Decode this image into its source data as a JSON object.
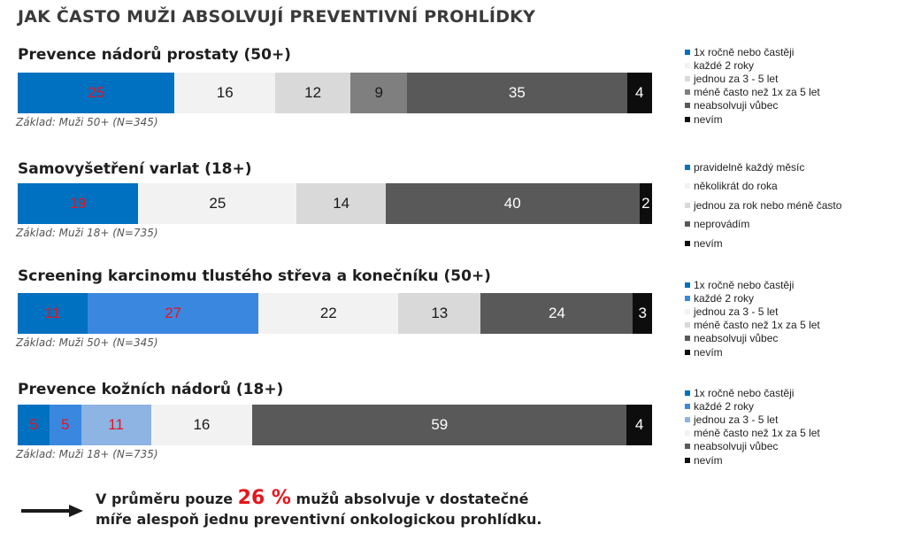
{
  "title": "JAK ČASTO MUŽI ABSOLVUJÍ PREVENTIVNÍ PROHLÍDKY",
  "chart_data": [
    {
      "type": "bar",
      "orientation": "horizontal-stacked-100",
      "title": "Prevence nádorů prostaty (50+)",
      "base": "Základ: Muži 50+ (N=345)",
      "series": [
        {
          "name": "1x ročně nebo častěji",
          "value": 25,
          "color": "#0070c0",
          "label_color": "#e8141c"
        },
        {
          "name": "každé 2 roky",
          "value": 16,
          "color": "#f2f2f2",
          "label_color": "#1a1a1a"
        },
        {
          "name": "jednou za 3 - 5 let",
          "value": 12,
          "color": "#d9d9d9",
          "label_color": "#1a1a1a"
        },
        {
          "name": "méně často než 1x za 5 let",
          "value": 9,
          "color": "#7f7f7f",
          "label_color": "#1a1a1a"
        },
        {
          "name": "neabsolvuji vůbec",
          "value": 35,
          "color": "#595959",
          "label_color": "#ffffff"
        },
        {
          "name": "nevím",
          "value": 4,
          "color": "#0d0d0d",
          "label_color": "#ffffff"
        }
      ]
    },
    {
      "type": "bar",
      "orientation": "horizontal-stacked-100",
      "title": "Samovyšetření varlat (18+)",
      "base": "Základ: Muži 18+ (N=735)",
      "series": [
        {
          "name": "pravidelně každý měsíc",
          "value": 19,
          "color": "#0070c0",
          "label_color": "#e8141c"
        },
        {
          "name": "několikrát do roka",
          "value": 25,
          "color": "#f2f2f2",
          "label_color": "#1a1a1a"
        },
        {
          "name": "jednou za rok nebo méně často",
          "value": 14,
          "color": "#d9d9d9",
          "label_color": "#1a1a1a"
        },
        {
          "name": "neprovádím",
          "value": 40,
          "color": "#595959",
          "label_color": "#ffffff"
        },
        {
          "name": "nevím",
          "value": 2,
          "color": "#0d0d0d",
          "label_color": "#ffffff"
        }
      ]
    },
    {
      "type": "bar",
      "orientation": "horizontal-stacked-100",
      "title": "Screening karcinomu tlustého střeva a konečníku (50+)",
      "base": "Základ: Muži 50+ (N=345)",
      "series": [
        {
          "name": "1x ročně nebo častěji",
          "value": 11,
          "color": "#0070c0",
          "label_color": "#e8141c"
        },
        {
          "name": "každé 2 roky",
          "value": 27,
          "color": "#3a87e0",
          "label_color": "#e8141c"
        },
        {
          "name": "jednou za 3 - 5 let",
          "value": 22,
          "color": "#f2f2f2",
          "label_color": "#1a1a1a"
        },
        {
          "name": "méně často než 1x za 5 let",
          "value": 13,
          "color": "#d9d9d9",
          "label_color": "#1a1a1a"
        },
        {
          "name": "neabsolvuji vůbec",
          "value": 24,
          "color": "#595959",
          "label_color": "#ffffff"
        },
        {
          "name": "nevím",
          "value": 3,
          "color": "#0d0d0d",
          "label_color": "#ffffff"
        }
      ]
    },
    {
      "type": "bar",
      "orientation": "horizontal-stacked-100",
      "title": "Prevence kožních nádorů (18+)",
      "base": "Základ: Muži 18+ (N=735)",
      "series": [
        {
          "name": "1x ročně nebo častěji",
          "value": 5,
          "color": "#0070c0",
          "label_color": "#e8141c"
        },
        {
          "name": "každé 2 roky",
          "value": 5,
          "color": "#3a87e0",
          "label_color": "#e8141c"
        },
        {
          "name": "jednou za 3 - 5 let",
          "value": 11,
          "color": "#8db4e2",
          "label_color": "#e8141c"
        },
        {
          "name": "méně často než 1x za 5 let",
          "value": 16,
          "color": "#f2f2f2",
          "label_color": "#1a1a1a"
        },
        {
          "name": "neabsolvuji vůbec",
          "value": 59,
          "color": "#595959",
          "label_color": "#ffffff"
        },
        {
          "name": "nevím",
          "value": 4,
          "color": "#0d0d0d",
          "label_color": "#ffffff"
        }
      ]
    }
  ],
  "conclusion": {
    "before": "V průměru pouze ",
    "highlight": "26 %",
    "after": " mužů absolvuje v dostatečné",
    "line2": "míře alespoň jednu preventivní onkologickou prohlídku."
  }
}
